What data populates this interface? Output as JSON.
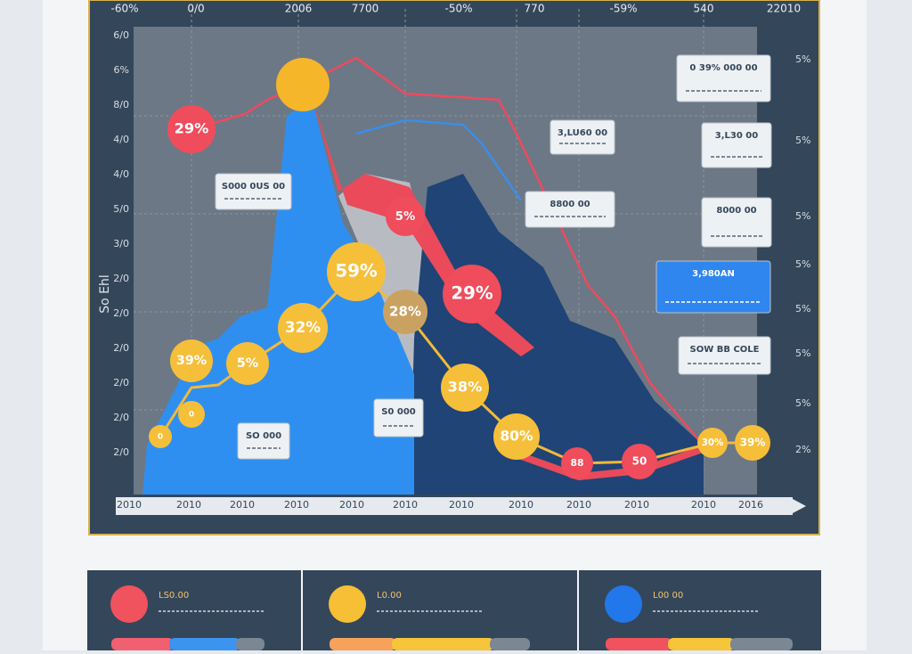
{
  "top_labels": [
    "-60%",
    "0/0",
    "2006",
    "7700",
    "-50%",
    "770",
    "-59%",
    "540",
    "22010"
  ],
  "y_axis": {
    "title": "So Ehl",
    "labels": [
      "6/0",
      "6%",
      "8/0",
      "4/0",
      "4/0",
      "5/0",
      "3/0",
      "2/0",
      "2/0",
      "2/0",
      "2/0",
      "2/0",
      "2/0"
    ]
  },
  "right_labels": [
    "5%",
    "5%",
    "5%",
    "5%",
    "5%",
    "5%",
    "5%",
    "2%"
  ],
  "x_labels": [
    "2010",
    "2010",
    "2010",
    "2010",
    "2010",
    "2010",
    "2010",
    "2010",
    "2010",
    "2010",
    "2010",
    "2016"
  ],
  "bubbles": [
    "29%",
    "59%",
    "32%",
    "28%",
    "5%",
    "29%",
    "39%",
    "5%",
    "38%",
    "80%",
    "88",
    "50",
    "39%",
    "30%",
    "0",
    "0"
  ],
  "callouts": [
    "0 39% 000 00",
    "3,LU60 00",
    "3,L30 00",
    "S000 0US 00",
    "8800 00",
    "8000 00",
    "3,980AN",
    "SOW BB COLE",
    "S0 000",
    "SO 000"
  ],
  "legend": [
    "LS0.00",
    "L0.00",
    "L00 00"
  ]
}
